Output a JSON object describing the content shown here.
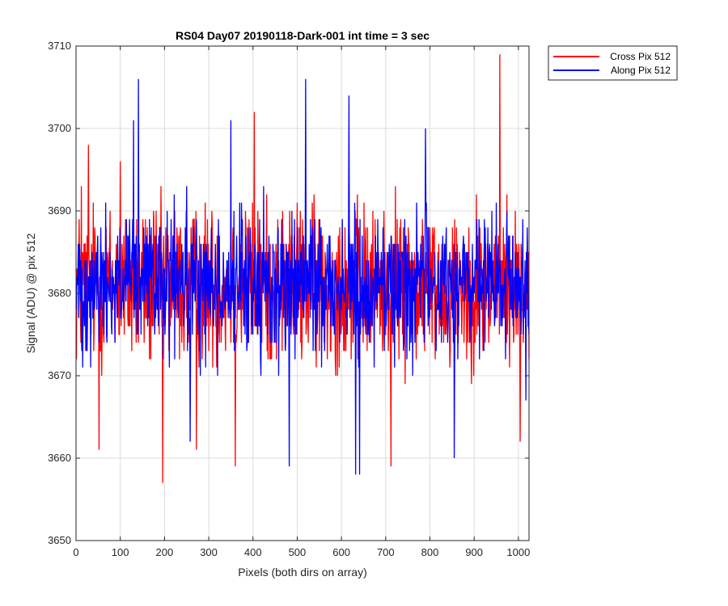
{
  "chart_data": {
    "type": "line",
    "title": "RS04 Day07 20190118-Dark-001 int time = 3 sec",
    "xlabel": "Pixels (both dirs on array)",
    "ylabel": "Signal (ADU) @ pix 512",
    "xlim": [
      0,
      1024
    ],
    "ylim": [
      3650,
      3710
    ],
    "xticks": [
      0,
      100,
      200,
      300,
      400,
      500,
      600,
      700,
      800,
      900,
      1000
    ],
    "yticks": [
      3650,
      3660,
      3670,
      3680,
      3690,
      3700,
      3710
    ],
    "grid": true,
    "legend_placement": "outside-top-right",
    "series": [
      {
        "name": "Cross Pix 512",
        "color": "#ff0000",
        "x_range": [
          1,
          1024
        ],
        "mean": 3681,
        "noise_amplitude": 9,
        "notable_points": [
          {
            "x": 12,
            "y": 3693
          },
          {
            "x": 28,
            "y": 3698
          },
          {
            "x": 52,
            "y": 3661
          },
          {
            "x": 100,
            "y": 3696
          },
          {
            "x": 196,
            "y": 3657
          },
          {
            "x": 272,
            "y": 3661
          },
          {
            "x": 360,
            "y": 3659
          },
          {
            "x": 403,
            "y": 3702
          },
          {
            "x": 712,
            "y": 3659
          },
          {
            "x": 958,
            "y": 3709
          },
          {
            "x": 1004,
            "y": 3662
          }
        ]
      },
      {
        "name": "Along Pix 512",
        "color": "#0000ff",
        "x_range": [
          1,
          1024
        ],
        "mean": 3681,
        "noise_amplitude": 8,
        "notable_points": [
          {
            "x": 130,
            "y": 3701
          },
          {
            "x": 141,
            "y": 3706
          },
          {
            "x": 258,
            "y": 3662
          },
          {
            "x": 350,
            "y": 3701
          },
          {
            "x": 482,
            "y": 3659
          },
          {
            "x": 519,
            "y": 3706
          },
          {
            "x": 617,
            "y": 3704
          },
          {
            "x": 632,
            "y": 3658
          },
          {
            "x": 641,
            "y": 3658
          },
          {
            "x": 790,
            "y": 3700
          },
          {
            "x": 855,
            "y": 3660
          },
          {
            "x": 1017,
            "y": 3667
          }
        ]
      }
    ]
  }
}
